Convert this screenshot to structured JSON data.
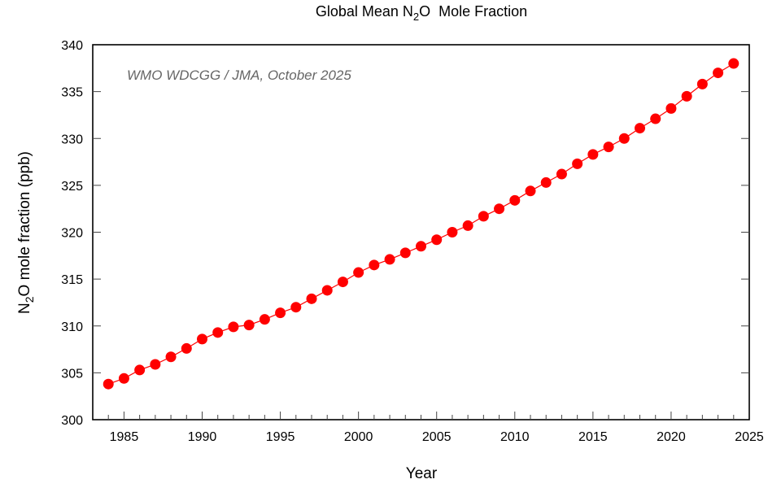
{
  "chart_data": {
    "type": "line",
    "title": {
      "prefix": "Global Mean N",
      "sub": "2",
      "suffix": "O  Mole Fraction"
    },
    "xlabel": "Year",
    "ylabel": {
      "prefix": "N",
      "sub": "2",
      "suffix": "O mole fraction (ppb)"
    },
    "annotation": "WMO WDCGG / JMA, October 2025",
    "xlim": [
      1983,
      2025
    ],
    "ylim": [
      300,
      340
    ],
    "xticks": [
      1985,
      1990,
      1995,
      2000,
      2005,
      2010,
      2015,
      2020,
      2025
    ],
    "xticks_minor_step": 1,
    "yticks": [
      300,
      305,
      310,
      315,
      320,
      325,
      330,
      335,
      340
    ],
    "grid": false,
    "series": [
      {
        "name": "Global Mean N2O",
        "color": "#ff0000",
        "marker": "circle",
        "x": [
          1984,
          1985,
          1986,
          1987,
          1988,
          1989,
          1990,
          1991,
          1992,
          1993,
          1994,
          1995,
          1996,
          1997,
          1998,
          1999,
          2000,
          2001,
          2002,
          2003,
          2004,
          2005,
          2006,
          2007,
          2008,
          2009,
          2010,
          2011,
          2012,
          2013,
          2014,
          2015,
          2016,
          2017,
          2018,
          2019,
          2020,
          2021,
          2022,
          2023,
          2024
        ],
        "values": [
          303.8,
          304.4,
          305.3,
          305.9,
          306.7,
          307.6,
          308.6,
          309.3,
          309.9,
          310.1,
          310.7,
          311.4,
          312.0,
          312.9,
          313.8,
          314.7,
          315.7,
          316.5,
          317.1,
          317.8,
          318.5,
          319.2,
          320.0,
          320.7,
          321.7,
          322.5,
          323.4,
          324.4,
          325.3,
          326.2,
          327.3,
          328.3,
          329.1,
          330.0,
          331.1,
          332.1,
          333.2,
          334.5,
          335.8,
          337.0,
          338.0
        ]
      }
    ]
  }
}
